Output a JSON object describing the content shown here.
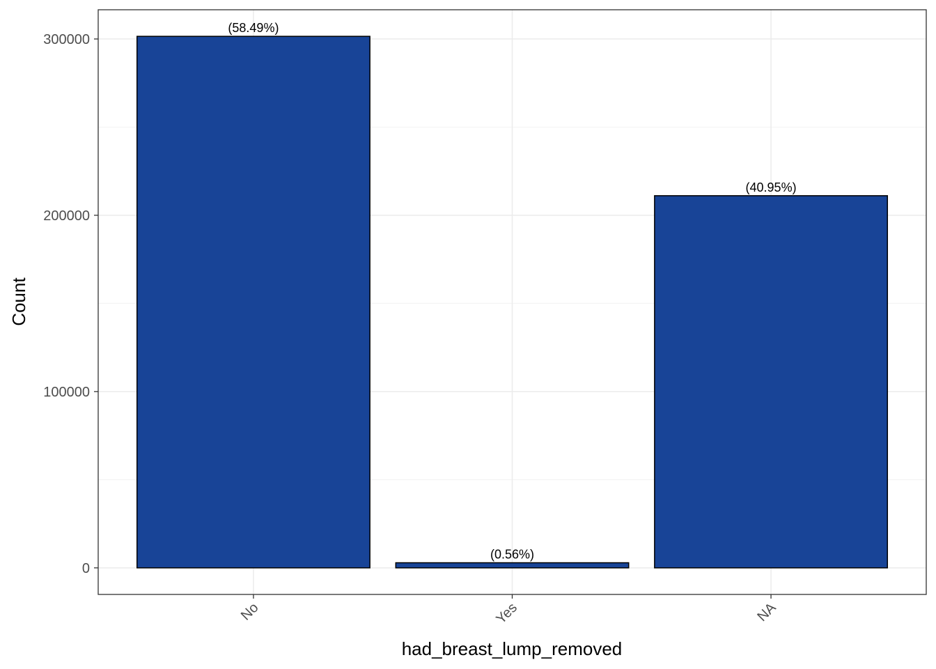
{
  "chart_data": {
    "type": "bar",
    "categories": [
      "No",
      "Yes",
      "NA"
    ],
    "values": [
      301500,
      2900,
      211100
    ],
    "data_labels": [
      "(58.49%)",
      "(0.56%)",
      "(40.95%)"
    ],
    "xlabel": "had_breast_lump_removed",
    "ylabel": "Count",
    "ylim": [
      -15075,
      316575
    ],
    "y_ticks": [
      0,
      100000,
      200000,
      300000
    ],
    "y_tick_labels": [
      "0",
      "100000",
      "200000",
      "300000"
    ],
    "grid": true,
    "legend": "none",
    "colors": {
      "bar_fill": "#184497",
      "bar_stroke": "#000000",
      "grid_major": "#ebebeb",
      "grid_minor": "#f4f4f4",
      "panel_border": "#333333"
    }
  }
}
